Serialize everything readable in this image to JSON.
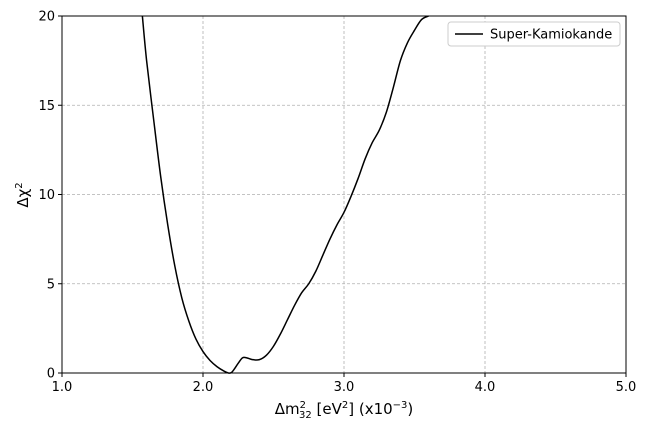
{
  "chart_data": {
    "type": "line",
    "title": "",
    "xlabel_parts": {
      "prefix": "Δm",
      "sup": "2",
      "sub": "32",
      "unit_open": " [eV",
      "unit_sup": "2",
      "unit_close": "] (x10",
      "exp_sup": "−3",
      "end": ")"
    },
    "ylabel_parts": {
      "prefix": "Δχ",
      "sup": "2"
    },
    "xlim": [
      1.0,
      5.0
    ],
    "ylim": [
      0,
      20
    ],
    "xticks": [
      1.0,
      2.0,
      3.0,
      4.0,
      5.0
    ],
    "xtick_labels": [
      "1.0",
      "2.0",
      "3.0",
      "4.0",
      "5.0"
    ],
    "yticks": [
      0,
      5,
      10,
      15,
      20
    ],
    "ytick_labels": [
      "0",
      "5",
      "10",
      "15",
      "20"
    ],
    "grid": true,
    "legend_position": "top-right",
    "series": [
      {
        "name": "Super-Kamiokande",
        "color": "#000000",
        "x": [
          1.57,
          1.6,
          1.65,
          1.7,
          1.75,
          1.8,
          1.85,
          1.9,
          1.95,
          2.0,
          2.05,
          2.1,
          2.15,
          2.18,
          2.2,
          2.22,
          2.25,
          2.28,
          2.31,
          2.35,
          2.4,
          2.45,
          2.5,
          2.55,
          2.6,
          2.65,
          2.7,
          2.75,
          2.8,
          2.85,
          2.9,
          2.95,
          3.0,
          3.05,
          3.1,
          3.15,
          3.2,
          3.25,
          3.3,
          3.35,
          3.4,
          3.45,
          3.5,
          3.55,
          3.6
        ],
        "y": [
          20.0,
          17.5,
          14.2,
          11.0,
          8.3,
          6.0,
          4.2,
          2.9,
          1.9,
          1.2,
          0.7,
          0.35,
          0.1,
          0.0,
          0.02,
          0.2,
          0.55,
          0.85,
          0.85,
          0.75,
          0.75,
          1.0,
          1.5,
          2.2,
          3.0,
          3.8,
          4.5,
          5.0,
          5.7,
          6.6,
          7.5,
          8.3,
          9.0,
          9.9,
          10.9,
          12.0,
          12.9,
          13.6,
          14.6,
          16.0,
          17.5,
          18.5,
          19.2,
          19.8,
          20.0
        ]
      }
    ]
  }
}
